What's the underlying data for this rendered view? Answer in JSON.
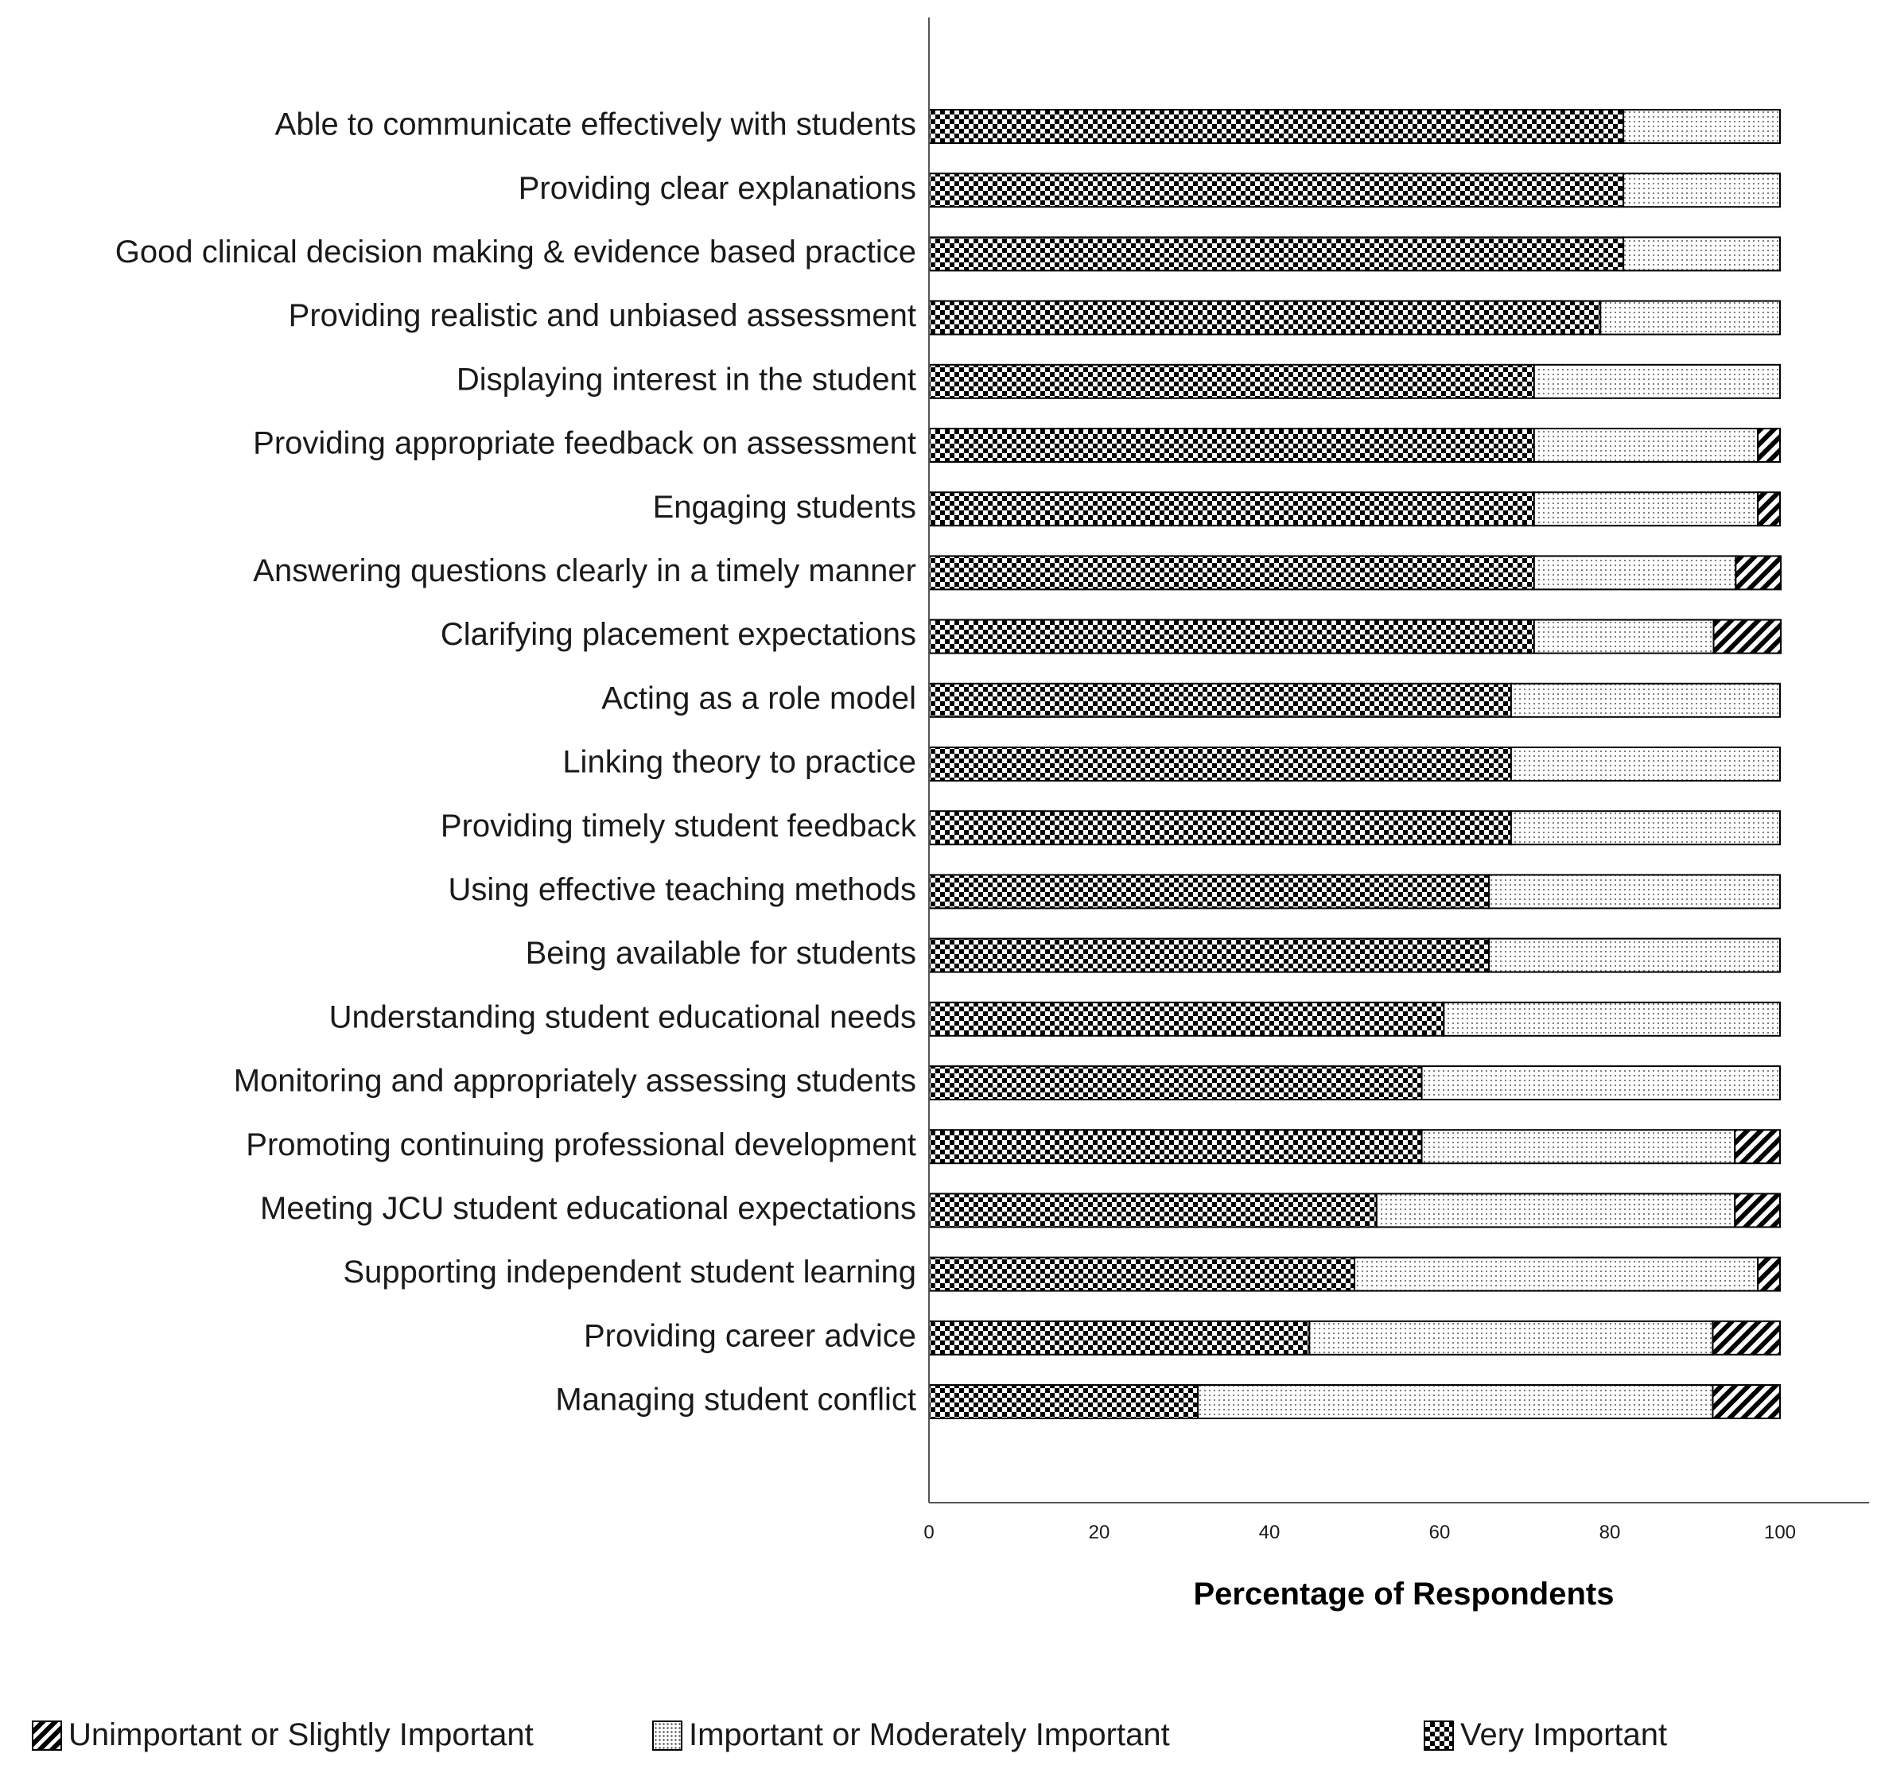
{
  "chart_data": {
    "type": "bar",
    "orientation": "horizontal",
    "stacked": true,
    "categories": [
      "Able to communicate effectively with students",
      "Providing clear explanations",
      "Good clinical decision making & evidence based practice",
      "Providing realistic and unbiased assessment",
      "Displaying interest in the student",
      "Providing appropriate feedback on assessment",
      "Engaging students",
      "Answering questions clearly in a timely manner",
      "Clarifying placement expectations",
      "Acting as a role model",
      "Linking theory to practice",
      "Providing timely student feedback",
      "Using effective teaching methods",
      "Being available for students",
      "Understanding student educational needs",
      "Monitoring and appropriately assessing students",
      "Promoting continuing professional development",
      "Meeting JCU student educational expectations",
      "Supporting independent student learning",
      "Providing career advice",
      "Managing student conflict"
    ],
    "series": [
      {
        "name": "Very Important",
        "pattern": "checker",
        "values": [
          81.6,
          81.6,
          81.6,
          78.9,
          71.1,
          71.1,
          71.1,
          71.1,
          71.1,
          68.4,
          68.4,
          68.4,
          65.8,
          65.8,
          60.5,
          57.9,
          57.9,
          52.6,
          50.0,
          44.7,
          31.6
        ]
      },
      {
        "name": "Important or Moderately Important",
        "pattern": "dots",
        "values": [
          18.4,
          18.4,
          18.4,
          21.1,
          28.9,
          26.3,
          26.3,
          23.7,
          21.1,
          31.6,
          31.6,
          31.6,
          34.2,
          34.2,
          39.5,
          42.1,
          36.8,
          42.1,
          47.4,
          47.4,
          60.5
        ]
      },
      {
        "name": "Unimportant or Slightly Important",
        "pattern": "hatch",
        "values": [
          0,
          0,
          0,
          0,
          0,
          2.6,
          2.6,
          5.3,
          7.9,
          0,
          0,
          0,
          0,
          0,
          0,
          0,
          5.3,
          5.3,
          2.6,
          7.9,
          7.9
        ]
      }
    ],
    "xlabel": "Percentage of Respondents",
    "ylabel": "",
    "xlim": [
      0,
      110
    ],
    "xticks": [
      0,
      20,
      40,
      60,
      80,
      100
    ],
    "legend": {
      "position": "bottom",
      "order": [
        "Unimportant or Slightly Important",
        "Important or Moderately Important",
        "Very Important"
      ]
    },
    "grid": false
  }
}
